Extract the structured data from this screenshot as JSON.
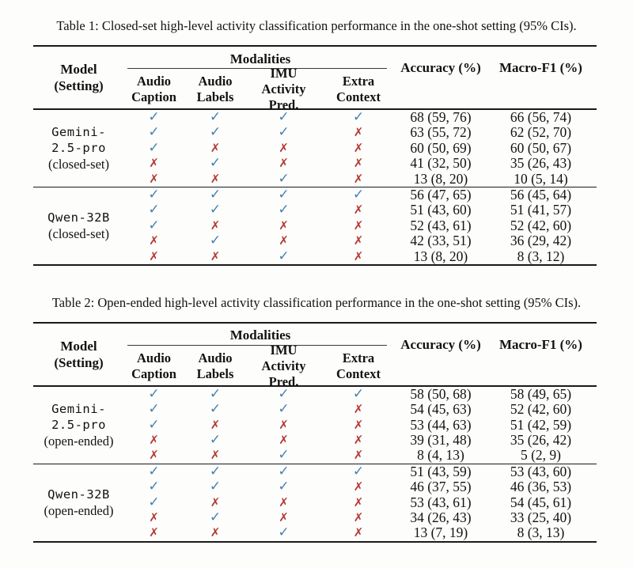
{
  "page": {
    "background": "#fdfdfb"
  },
  "colors": {
    "check": "#4581b0",
    "cross": "#b23b34",
    "rule": "#1a1a1a",
    "text": "#121212"
  },
  "glyphs": {
    "check": "✓",
    "cross": "✗"
  },
  "tables": [
    {
      "caption": "Table 1: Closed-set high-level activity classification performance in the one-shot setting (95% CIs).",
      "header": {
        "model_line1": "Model",
        "model_line2": "(Setting)",
        "modalities_label": "Modalities",
        "modality_columns": [
          [
            "Audio",
            "Caption"
          ],
          [
            "Audio",
            "Labels"
          ],
          [
            "IMU Activity",
            "Pred."
          ],
          [
            "Extra",
            "Context"
          ]
        ],
        "accuracy_label": "Accuracy (%)",
        "macrof1_label": "Macro-F1 (%)"
      },
      "groups": [
        {
          "model_lines": [
            "Gemini-",
            "2.5-pro"
          ],
          "setting": "(closed-set)",
          "rows": [
            {
              "marks": [
                true,
                true,
                true,
                true
              ],
              "accuracy": "68 (59, 76)",
              "macro_f1": "66 (56, 74)"
            },
            {
              "marks": [
                true,
                true,
                true,
                false
              ],
              "accuracy": "63 (55, 72)",
              "macro_f1": "62 (52, 70)"
            },
            {
              "marks": [
                true,
                false,
                false,
                false
              ],
              "accuracy": "60 (50, 69)",
              "macro_f1": "60 (50, 67)"
            },
            {
              "marks": [
                false,
                true,
                false,
                false
              ],
              "accuracy": "41 (32, 50)",
              "macro_f1": "35 (26, 43)"
            },
            {
              "marks": [
                false,
                false,
                true,
                false
              ],
              "accuracy": "13 (8, 20)",
              "macro_f1": "10 (5, 14)"
            }
          ]
        },
        {
          "model_lines": [
            "Qwen-32B"
          ],
          "setting": "(closed-set)",
          "rows": [
            {
              "marks": [
                true,
                true,
                true,
                true
              ],
              "accuracy": "56 (47, 65)",
              "macro_f1": "56 (45, 64)"
            },
            {
              "marks": [
                true,
                true,
                true,
                false
              ],
              "accuracy": "51 (43, 60)",
              "macro_f1": "51 (41, 57)"
            },
            {
              "marks": [
                true,
                false,
                false,
                false
              ],
              "accuracy": "52 (43, 61)",
              "macro_f1": "52 (42, 60)"
            },
            {
              "marks": [
                false,
                true,
                false,
                false
              ],
              "accuracy": "42 (33, 51)",
              "macro_f1": "36 (29, 42)"
            },
            {
              "marks": [
                false,
                false,
                true,
                false
              ],
              "accuracy": "13 (8, 20)",
              "macro_f1": "8 (3, 12)"
            }
          ]
        }
      ]
    },
    {
      "caption": "Table 2: Open-ended high-level activity classification performance in the one-shot setting (95% CIs).",
      "header": {
        "model_line1": "Model",
        "model_line2": "(Setting)",
        "modalities_label": "Modalities",
        "modality_columns": [
          [
            "Audio",
            "Caption"
          ],
          [
            "Audio",
            "Labels"
          ],
          [
            "IMU Activity",
            "Pred."
          ],
          [
            "Extra",
            "Context"
          ]
        ],
        "accuracy_label": "Accuracy (%)",
        "macrof1_label": "Macro-F1 (%)"
      },
      "groups": [
        {
          "model_lines": [
            "Gemini-",
            "2.5-pro"
          ],
          "setting": "(open-ended)",
          "rows": [
            {
              "marks": [
                true,
                true,
                true,
                true
              ],
              "accuracy": "58 (50, 68)",
              "macro_f1": "58 (49, 65)"
            },
            {
              "marks": [
                true,
                true,
                true,
                false
              ],
              "accuracy": "54 (45, 63)",
              "macro_f1": "52 (42, 60)"
            },
            {
              "marks": [
                true,
                false,
                false,
                false
              ],
              "accuracy": "53 (44, 63)",
              "macro_f1": "51 (42, 59)"
            },
            {
              "marks": [
                false,
                true,
                false,
                false
              ],
              "accuracy": "39 (31, 48)",
              "macro_f1": "35 (26, 42)"
            },
            {
              "marks": [
                false,
                false,
                true,
                false
              ],
              "accuracy": "8 (4, 13)",
              "macro_f1": "5 (2, 9)"
            }
          ]
        },
        {
          "model_lines": [
            "Qwen-32B"
          ],
          "setting": "(open-ended)",
          "rows": [
            {
              "marks": [
                true,
                true,
                true,
                true
              ],
              "accuracy": "51 (43, 59)",
              "macro_f1": "53 (43, 60)"
            },
            {
              "marks": [
                true,
                true,
                true,
                false
              ],
              "accuracy": "46 (37, 55)",
              "macro_f1": "46 (36, 53)"
            },
            {
              "marks": [
                true,
                false,
                false,
                false
              ],
              "accuracy": "53 (43, 61)",
              "macro_f1": "54 (45, 61)"
            },
            {
              "marks": [
                false,
                true,
                false,
                false
              ],
              "accuracy": "34 (26, 43)",
              "macro_f1": "33 (25, 40)"
            },
            {
              "marks": [
                false,
                false,
                true,
                false
              ],
              "accuracy": "13 (7, 19)",
              "macro_f1": "8 (3, 13)"
            }
          ]
        }
      ]
    }
  ]
}
